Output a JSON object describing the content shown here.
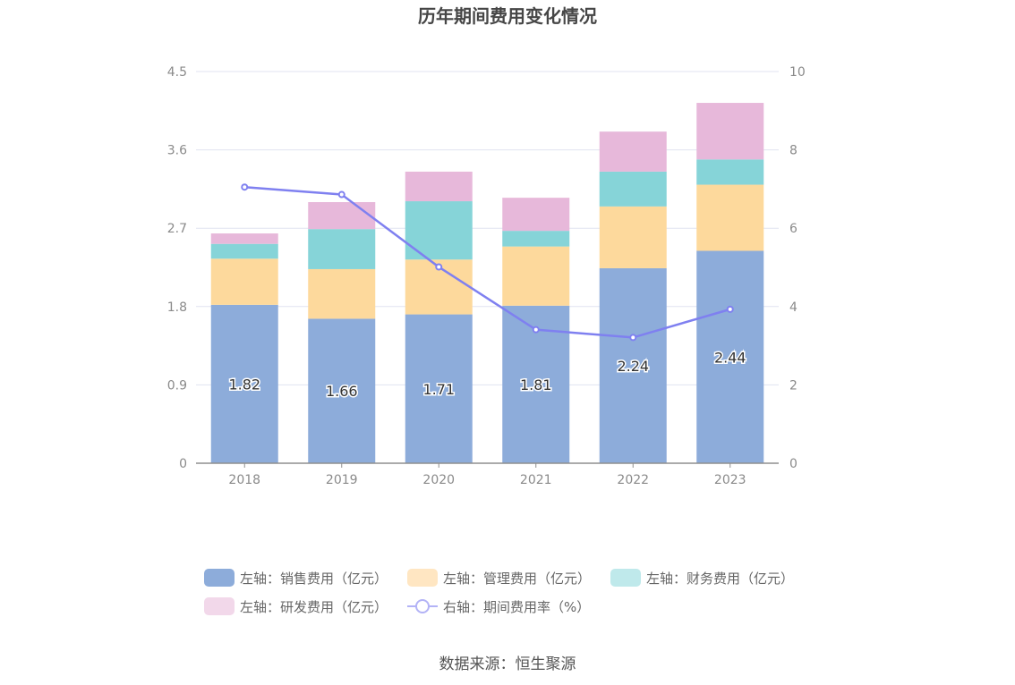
{
  "chart_data": {
    "type": "bar",
    "stacked": true,
    "title": "历年期间费用变化情况",
    "categories": [
      "2018",
      "2019",
      "2020",
      "2021",
      "2022",
      "2023"
    ],
    "left_axis": {
      "ylim": [
        0,
        4.5
      ],
      "ticks": [
        "0",
        "0.9",
        "1.8",
        "2.7",
        "3.6",
        "4.5"
      ]
    },
    "right_axis": {
      "ylim": [
        0,
        10
      ],
      "ticks": [
        "0",
        "2",
        "4",
        "6",
        "8",
        "10"
      ]
    },
    "series": [
      {
        "name": "左轴：销售费用（亿元）",
        "axis": "left",
        "color": "#8dacda",
        "values": [
          1.82,
          1.66,
          1.71,
          1.81,
          2.24,
          2.44
        ],
        "labels": [
          "1.82",
          "1.66",
          "1.71",
          "1.81",
          "2.24",
          "2.44"
        ]
      },
      {
        "name": "左轴：管理费用（亿元）",
        "axis": "left",
        "color": "#fdd99c",
        "values": [
          0.53,
          0.57,
          0.63,
          0.68,
          0.71,
          0.76
        ]
      },
      {
        "name": "左轴：财务费用（亿元）",
        "axis": "left",
        "color": "#86d4d8",
        "values": [
          0.17,
          0.46,
          0.67,
          0.18,
          0.4,
          0.29
        ]
      },
      {
        "name": "左轴：研发费用（亿元）",
        "axis": "left",
        "color": "#e7b8da",
        "values": [
          0.12,
          0.31,
          0.34,
          0.38,
          0.46,
          0.65
        ]
      },
      {
        "name": "右轴：期间费用率（%）",
        "axis": "right",
        "type": "line",
        "color": "#7f80f0",
        "values": [
          7.05,
          6.86,
          5.01,
          3.41,
          3.21,
          3.93
        ]
      }
    ],
    "legend": [
      {
        "label": "左轴：销售费用（亿元）",
        "color": "#8dacda",
        "kind": "box"
      },
      {
        "label": "左轴：管理费用（亿元）",
        "color": "#ffe6c2",
        "kind": "box"
      },
      {
        "label": "左轴：财务费用（亿元）",
        "color": "#bfe9eb",
        "kind": "box"
      },
      {
        "label": "左轴：研发费用（亿元）",
        "color": "#f2d8ea",
        "kind": "box"
      },
      {
        "label": "右轴：期间费用率（%）",
        "color": "#b3b3f6",
        "kind": "line"
      }
    ]
  },
  "source": "数据来源：恒生聚源"
}
